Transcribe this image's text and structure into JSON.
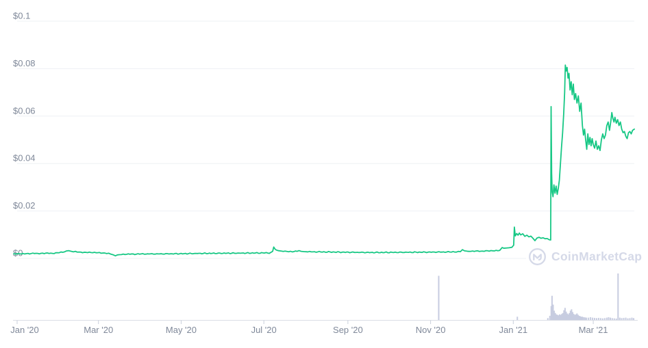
{
  "watermark": {
    "brand": "CoinMarketCap"
  },
  "chart_data": {
    "type": "line",
    "title": "",
    "xlabel": "",
    "ylabel": "",
    "legend": "none",
    "grid": "horizontal",
    "colors": {
      "price_line": "#16c784",
      "volume_bar": "#c7cce0",
      "gridline": "#eef0f4",
      "axis_line": "#dadde5",
      "tick_mark": "#c9cfdb",
      "axis_label": "#7f8899",
      "watermark": "#d5d9e8",
      "background": "#ffffff"
    },
    "yaxis": {
      "unit": "USD",
      "range": [
        0,
        0.1
      ],
      "ticks": [
        {
          "label": "$0.1",
          "value": 0.1
        },
        {
          "label": "$0.08",
          "value": 0.08
        },
        {
          "label": "$0.06",
          "value": 0.06
        },
        {
          "label": "$0.04",
          "value": 0.04
        },
        {
          "label": "$0.02",
          "value": 0.02
        },
        {
          "label": "$0",
          "value": 0
        }
      ]
    },
    "xaxis": {
      "epoch": "2020-01-01",
      "range_days": [
        -2.5,
        455.5
      ],
      "ticks": [
        {
          "label": "Jan '20",
          "day": 0
        },
        {
          "label": "Mar '20",
          "day": 60
        },
        {
          "label": "May '20",
          "day": 121
        },
        {
          "label": "Jul '20",
          "day": 182
        },
        {
          "label": "Sep '20",
          "day": 244
        },
        {
          "label": "Nov '20",
          "day": 305
        },
        {
          "label": "Jan '21",
          "day": 366
        },
        {
          "label": "Mar '21",
          "day": 425
        }
      ]
    },
    "price_series": {
      "name": "Price (USD)",
      "noise": 0.9,
      "points": [
        [
          -2.5,
          0.002
        ],
        [
          3,
          0.00195
        ],
        [
          8,
          0.00205
        ],
        [
          14,
          0.0021
        ],
        [
          20,
          0.00215
        ],
        [
          26,
          0.0022
        ],
        [
          31,
          0.0024
        ],
        [
          35,
          0.0027
        ],
        [
          38,
          0.00335
        ],
        [
          40,
          0.003
        ],
        [
          43,
          0.00285
        ],
        [
          47,
          0.00265
        ],
        [
          52,
          0.00255
        ],
        [
          57,
          0.00245
        ],
        [
          62,
          0.00235
        ],
        [
          66,
          0.00225
        ],
        [
          69,
          0.00195
        ],
        [
          71,
          0.0015
        ],
        [
          72.5,
          0.0011
        ],
        [
          74,
          0.0015
        ],
        [
          77,
          0.0017
        ],
        [
          82,
          0.0018
        ],
        [
          88,
          0.00185
        ],
        [
          95,
          0.0019
        ],
        [
          103,
          0.0019
        ],
        [
          112,
          0.00195
        ],
        [
          122,
          0.002
        ],
        [
          133,
          0.0021
        ],
        [
          144,
          0.00215
        ],
        [
          156,
          0.0022
        ],
        [
          168,
          0.00225
        ],
        [
          178,
          0.0023
        ],
        [
          186,
          0.00235
        ],
        [
          188.5,
          0.003
        ],
        [
          189.3,
          0.0048
        ],
        [
          190.2,
          0.004
        ],
        [
          191,
          0.0036
        ],
        [
          192.5,
          0.0033
        ],
        [
          195,
          0.0031
        ],
        [
          199,
          0.00295
        ],
        [
          203,
          0.0029
        ],
        [
          206.5,
          0.0031
        ],
        [
          208,
          0.0033
        ],
        [
          209.5,
          0.003
        ],
        [
          212,
          0.00285
        ],
        [
          217,
          0.0028
        ],
        [
          224,
          0.00275
        ],
        [
          232,
          0.0027
        ],
        [
          241,
          0.00262
        ],
        [
          251,
          0.00256
        ],
        [
          261,
          0.0025
        ],
        [
          270,
          0.00252
        ],
        [
          280,
          0.00256
        ],
        [
          291,
          0.0026
        ],
        [
          301,
          0.00264
        ],
        [
          310,
          0.00268
        ],
        [
          318,
          0.00272
        ],
        [
          324,
          0.0028
        ],
        [
          327,
          0.003
        ],
        [
          328.5,
          0.0037
        ],
        [
          330,
          0.0032
        ],
        [
          332,
          0.00305
        ],
        [
          336,
          0.003
        ],
        [
          341,
          0.00308
        ],
        [
          347,
          0.00315
        ],
        [
          352,
          0.00325
        ],
        [
          356,
          0.0034
        ],
        [
          357.8,
          0.0046
        ],
        [
          359,
          0.0043
        ],
        [
          361,
          0.0044
        ],
        [
          363,
          0.0045
        ],
        [
          365,
          0.0047
        ],
        [
          366.3,
          0.0056
        ],
        [
          366.8,
          0.0132
        ],
        [
          367.5,
          0.0095
        ],
        [
          368.5,
          0.0105
        ],
        [
          369.5,
          0.0098
        ],
        [
          370.5,
          0.0107
        ],
        [
          371.5,
          0.0099
        ],
        [
          373,
          0.0104
        ],
        [
          374.5,
          0.0093
        ],
        [
          376,
          0.0098
        ],
        [
          377.5,
          0.0091
        ],
        [
          379,
          0.0094
        ],
        [
          380.5,
          0.0085
        ],
        [
          382,
          0.0075
        ],
        [
          383.5,
          0.0086
        ],
        [
          385,
          0.0089
        ],
        [
          386.5,
          0.0085
        ],
        [
          388,
          0.0087
        ],
        [
          389.5,
          0.0083
        ],
        [
          391,
          0.0084
        ],
        [
          392.5,
          0.0079
        ],
        [
          393.6,
          0.0078
        ],
        [
          393.9,
          0.064
        ],
        [
          394.3,
          0.036
        ],
        [
          394.7,
          0.028
        ],
        [
          395.3,
          0.026
        ],
        [
          396,
          0.031
        ],
        [
          396.8,
          0.0275
        ],
        [
          397.6,
          0.0305
        ],
        [
          398.4,
          0.027
        ],
        [
          399.2,
          0.0295
        ],
        [
          400,
          0.033
        ],
        [
          400.8,
          0.04
        ],
        [
          401.6,
          0.047
        ],
        [
          402.4,
          0.053
        ],
        [
          403.2,
          0.061
        ],
        [
          403.9,
          0.07
        ],
        [
          404.4,
          0.0815
        ],
        [
          405,
          0.079
        ],
        [
          405.7,
          0.0805
        ],
        [
          406.4,
          0.076
        ],
        [
          407.1,
          0.078
        ],
        [
          407.9,
          0.071
        ],
        [
          408.7,
          0.0745
        ],
        [
          409.5,
          0.069
        ],
        [
          410.3,
          0.0735
        ],
        [
          411.1,
          0.067
        ],
        [
          412,
          0.0695
        ],
        [
          413,
          0.0655
        ],
        [
          414,
          0.0685
        ],
        [
          415,
          0.062
        ],
        [
          416,
          0.0655
        ],
        [
          417,
          0.056
        ],
        [
          417.8,
          0.052
        ],
        [
          418.6,
          0.0545
        ],
        [
          419.4,
          0.05
        ],
        [
          420.2,
          0.046
        ],
        [
          421,
          0.0525
        ],
        [
          421.8,
          0.048
        ],
        [
          422.6,
          0.051
        ],
        [
          423.4,
          0.0475
        ],
        [
          424.2,
          0.0505
        ],
        [
          425,
          0.048
        ],
        [
          426,
          0.0465
        ],
        [
          427,
          0.0495
        ],
        [
          428,
          0.046
        ],
        [
          429,
          0.0475
        ],
        [
          430,
          0.0455
        ],
        [
          431,
          0.05
        ],
        [
          432,
          0.0525
        ],
        [
          433,
          0.0505
        ],
        [
          434,
          0.052
        ],
        [
          435,
          0.056
        ],
        [
          436,
          0.0575
        ],
        [
          437,
          0.054
        ],
        [
          438,
          0.058
        ],
        [
          438.7,
          0.0615
        ],
        [
          439.5,
          0.059
        ],
        [
          440.3,
          0.0575
        ],
        [
          441,
          0.0595
        ],
        [
          442,
          0.057
        ],
        [
          443,
          0.0585
        ],
        [
          444,
          0.056
        ],
        [
          445,
          0.0575
        ],
        [
          446,
          0.0545
        ],
        [
          447,
          0.053
        ],
        [
          448,
          0.0535
        ],
        [
          449,
          0.0515
        ],
        [
          450,
          0.0505
        ],
        [
          451,
          0.053
        ],
        [
          452,
          0.0535
        ],
        [
          453,
          0.0525
        ],
        [
          454,
          0.054
        ],
        [
          455.3,
          0.0545
        ]
      ]
    },
    "volume_series": {
      "name": "Volume",
      "scale": "relative (0-1 of volume pane height)",
      "points": [
        [
          311,
          0.95
        ],
        [
          369,
          0.07
        ],
        [
          391.5,
          0.04
        ],
        [
          393,
          0.09
        ],
        [
          394,
          0.3
        ],
        [
          394.6,
          0.52
        ],
        [
          395.4,
          0.33
        ],
        [
          396.2,
          0.2
        ],
        [
          397,
          0.15
        ],
        [
          397.8,
          0.12
        ],
        [
          398.6,
          0.11
        ],
        [
          399.4,
          0.1
        ],
        [
          400.2,
          0.12
        ],
        [
          401,
          0.11
        ],
        [
          401.8,
          0.13
        ],
        [
          402.6,
          0.15
        ],
        [
          403.4,
          0.21
        ],
        [
          404.2,
          0.26
        ],
        [
          405,
          0.18
        ],
        [
          405.8,
          0.14
        ],
        [
          406.6,
          0.12
        ],
        [
          407.4,
          0.15
        ],
        [
          408.2,
          0.2
        ],
        [
          409,
          0.23
        ],
        [
          409.8,
          0.17
        ],
        [
          410.6,
          0.13
        ],
        [
          411.4,
          0.11
        ],
        [
          412.2,
          0.12
        ],
        [
          413,
          0.14
        ],
        [
          413.8,
          0.11
        ],
        [
          414.6,
          0.09
        ],
        [
          415.4,
          0.08
        ],
        [
          416.2,
          0.07
        ],
        [
          417,
          0.07
        ],
        [
          418,
          0.06
        ],
        [
          419,
          0.055
        ],
        [
          420,
          0.05
        ],
        [
          421.5,
          0.05
        ],
        [
          423,
          0.06
        ],
        [
          424.5,
          0.05
        ],
        [
          426,
          0.045
        ],
        [
          427.5,
          0.04
        ],
        [
          429,
          0.045
        ],
        [
          430.5,
          0.04
        ],
        [
          432,
          0.035
        ],
        [
          433.5,
          0.04
        ],
        [
          435,
          0.05
        ],
        [
          436.3,
          0.06
        ],
        [
          437.6,
          0.05
        ],
        [
          439,
          0.04
        ],
        [
          440.5,
          0.035
        ],
        [
          442,
          0.03
        ],
        [
          443.3,
          1.0
        ],
        [
          444.6,
          0.05
        ],
        [
          446,
          0.04
        ],
        [
          447.5,
          0.045
        ],
        [
          449,
          0.05
        ],
        [
          450.5,
          0.035
        ],
        [
          452,
          0.04
        ],
        [
          453.5,
          0.05
        ],
        [
          454.8,
          0.04
        ]
      ]
    }
  }
}
